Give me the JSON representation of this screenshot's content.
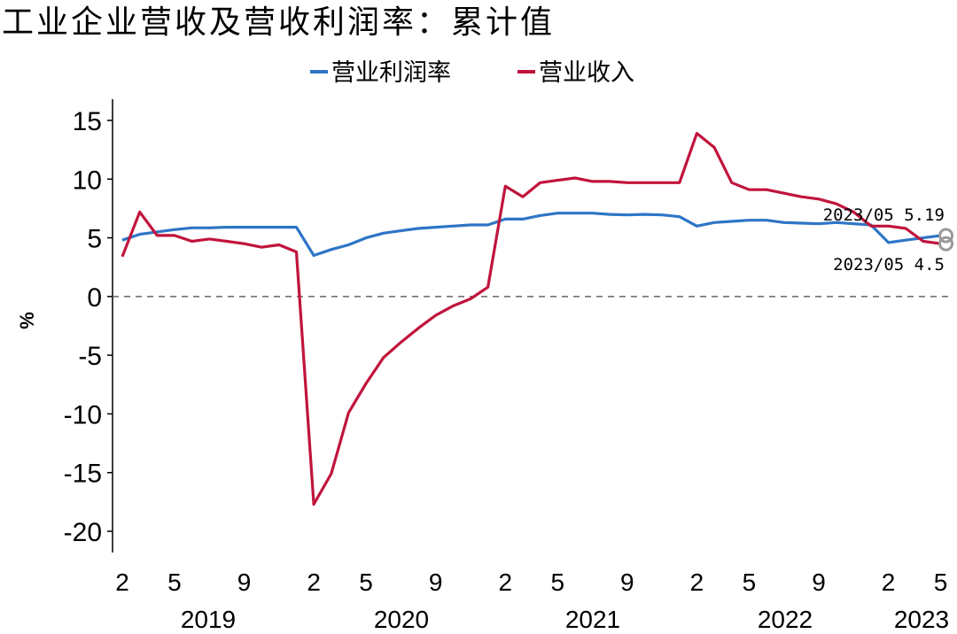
{
  "chart_data": {
    "type": "line",
    "title": "工业企业营收及营收利润率：累计值",
    "ylabel": "%",
    "xlabel": "",
    "ylim": [
      -20,
      15
    ],
    "yticks": [
      15,
      10,
      5,
      0,
      -5,
      -10,
      -15,
      -20
    ],
    "xtick_labels": [
      "2",
      "5",
      "9",
      "2",
      "5",
      "9",
      "2",
      "5",
      "9",
      "2",
      "5",
      "9",
      "2",
      "5"
    ],
    "year_labels": [
      "2019",
      "2020",
      "2021",
      "2022",
      "2023"
    ],
    "grid": false,
    "zero_line": "dashed",
    "legend_position": "top-center",
    "months": [
      "2019/02",
      "2019/03",
      "2019/04",
      "2019/05",
      "2019/06",
      "2019/07",
      "2019/08",
      "2019/09",
      "2019/10",
      "2019/11",
      "2019/12",
      "2020/02",
      "2020/03",
      "2020/04",
      "2020/05",
      "2020/06",
      "2020/07",
      "2020/08",
      "2020/09",
      "2020/10",
      "2020/11",
      "2020/12",
      "2021/02",
      "2021/03",
      "2021/04",
      "2021/05",
      "2021/06",
      "2021/07",
      "2021/08",
      "2021/09",
      "2021/10",
      "2021/11",
      "2021/12",
      "2022/02",
      "2022/03",
      "2022/04",
      "2022/05",
      "2022/06",
      "2022/07",
      "2022/08",
      "2022/09",
      "2022/10",
      "2022/11",
      "2022/12",
      "2023/02",
      "2023/03",
      "2023/04",
      "2023/05"
    ],
    "series": [
      {
        "name": "营业利润率",
        "color": "#2e75c6",
        "values": [
          4.8,
          5.3,
          5.5,
          5.7,
          5.85,
          5.85,
          5.9,
          5.9,
          5.9,
          5.9,
          5.9,
          3.5,
          4.0,
          4.4,
          5.0,
          5.4,
          5.6,
          5.8,
          5.9,
          6.0,
          6.1,
          6.1,
          6.6,
          6.6,
          6.9,
          7.1,
          7.1,
          7.1,
          7.0,
          6.95,
          7.0,
          6.95,
          6.8,
          6.0,
          6.3,
          6.4,
          6.5,
          6.5,
          6.3,
          6.25,
          6.2,
          6.3,
          6.2,
          6.1,
          4.6,
          4.8,
          5.0,
          5.19
        ]
      },
      {
        "name": "营业收入",
        "color": "#c0143c",
        "values": [
          3.4,
          7.2,
          5.2,
          5.2,
          4.7,
          4.9,
          4.7,
          4.5,
          4.2,
          4.4,
          3.8,
          -17.7,
          -15.1,
          -9.9,
          -7.4,
          -5.2,
          -3.9,
          -2.7,
          -1.6,
          -0.8,
          -0.2,
          0.8,
          9.4,
          8.5,
          9.7,
          9.9,
          10.1,
          9.8,
          9.8,
          9.7,
          9.7,
          9.7,
          9.7,
          13.9,
          12.7,
          9.7,
          9.1,
          9.1,
          8.8,
          8.5,
          8.3,
          7.9,
          7.2,
          6.0,
          6.0,
          5.8,
          4.7,
          4.5
        ]
      }
    ],
    "annotations": [
      {
        "label": "2023/05 5.19",
        "series": "营业利润率",
        "x": "2023/05",
        "y": 5.19
      },
      {
        "label": "2023/05 4.5",
        "series": "营业收入",
        "x": "2023/05",
        "y": 4.5
      }
    ]
  }
}
